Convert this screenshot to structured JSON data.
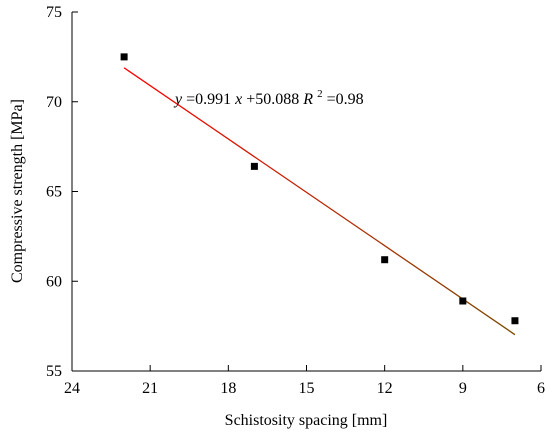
{
  "chart_data": {
    "type": "scatter",
    "title": "",
    "xlabel": "Schistosity spacing [mm]",
    "ylabel": "Compressive strength [MPa]",
    "xlim": [
      24,
      6
    ],
    "ylim": [
      55,
      75
    ],
    "x_reversed": true,
    "xticks": [
      24,
      21,
      18,
      15,
      12,
      9,
      6
    ],
    "yticks": [
      55,
      60,
      65,
      70,
      75
    ],
    "grid": false,
    "legend": "none",
    "series": [
      {
        "values": [
          {
            "x": 22.0,
            "y": 72.5
          },
          {
            "x": 17.0,
            "y": 66.4
          },
          {
            "x": 12.0,
            "y": 61.2
          },
          {
            "x": 9.0,
            "y": 58.9
          },
          {
            "x": 7.0,
            "y": 57.8
          }
        ],
        "marker": "square",
        "color": "#000000"
      }
    ],
    "fit": {
      "x_range": [
        22.0,
        7.0
      ],
      "slope": 0.991,
      "intercept": 50.088,
      "colors": [
        "#ff0000",
        "#7a4a00"
      ]
    },
    "annotation": {
      "y_var": "y",
      "eq_middle": "=0.991",
      "x_var": "x",
      "eq_tail": "+50.088",
      "r_base": "R",
      "r_sup": "2",
      "r_tail": "=0.98"
    }
  }
}
